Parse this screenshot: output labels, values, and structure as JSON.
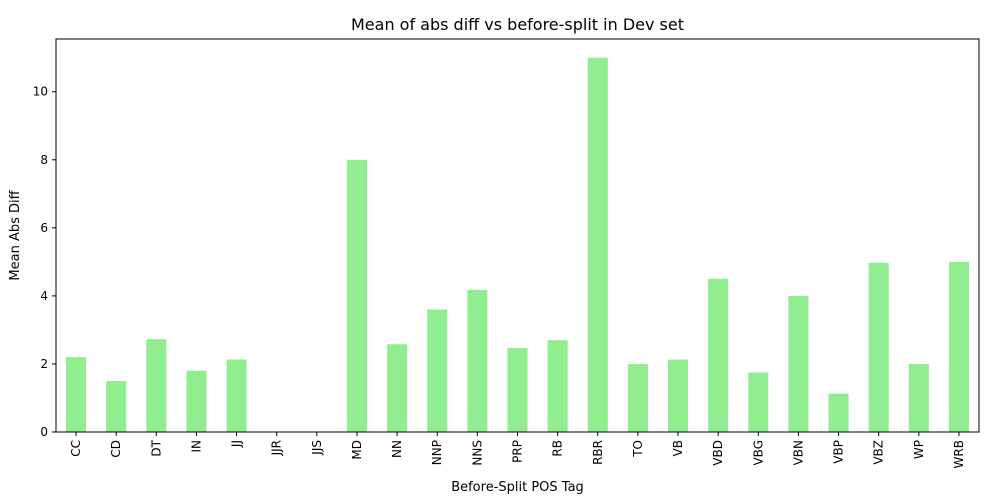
{
  "chart_data": {
    "type": "bar",
    "title": "Mean of abs diff vs before-split in Dev set",
    "xlabel": "Before-Split POS Tag",
    "ylabel": "Mean Abs Diff",
    "categories": [
      "CC",
      "CD",
      "DT",
      "IN",
      "JJ",
      "JJR",
      "JJS",
      "MD",
      "NN",
      "NNP",
      "NNS",
      "PRP",
      "RB",
      "RBR",
      "TO",
      "VB",
      "VBD",
      "VBG",
      "VBN",
      "VBP",
      "VBZ",
      "WP",
      "WRB"
    ],
    "values": [
      2.2,
      1.5,
      2.73,
      1.8,
      2.13,
      0,
      0,
      8.0,
      2.58,
      3.6,
      4.18,
      2.47,
      2.7,
      11.0,
      2.0,
      2.13,
      4.5,
      1.75,
      4.0,
      1.13,
      4.97,
      2.0,
      5.0
    ],
    "ylim": [
      0,
      11.55
    ],
    "yticks": [
      0,
      2,
      4,
      6,
      8,
      10
    ],
    "grid": false,
    "bar_color": "#90ee90"
  }
}
